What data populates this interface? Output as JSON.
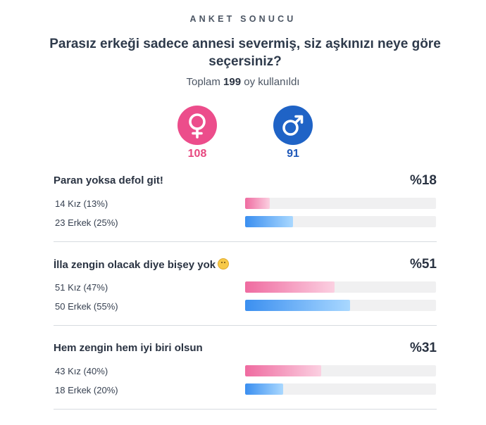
{
  "header": {
    "kicker": "ANKET SONUCU",
    "question": "Parasız erkeği sadece annesi severmiş, siz aşkınızı neye göre seçersiniz?",
    "total_prefix": "Toplam",
    "total_votes": "199",
    "total_suffix": "oy kullanıldı"
  },
  "gender": {
    "female": {
      "icon": "female-symbol-icon",
      "count": "108",
      "color": "#ec4d8b"
    },
    "male": {
      "icon": "male-symbol-icon",
      "count": "91",
      "color": "#1f63c6"
    }
  },
  "options": [
    {
      "title": "Paran yoksa defol git!",
      "percent": "%18",
      "female_label": "14 Kız (13%)",
      "female_share": 13,
      "male_label": "23 Erkek (25%)",
      "male_share": 25
    },
    {
      "title": "İlla zengin olacak diye bişey yok",
      "emoji": "smiley-emoji-icon",
      "percent": "%51",
      "female_label": "51 Kız (47%)",
      "female_share": 47,
      "male_label": "50 Erkek (55%)",
      "male_share": 55
    },
    {
      "title": "Hem zengin hem iyi biri olsun",
      "percent": "%31",
      "female_label": "43 Kız (40%)",
      "female_share": 40,
      "male_label": "18 Erkek (20%)",
      "male_share": 20
    }
  ]
}
